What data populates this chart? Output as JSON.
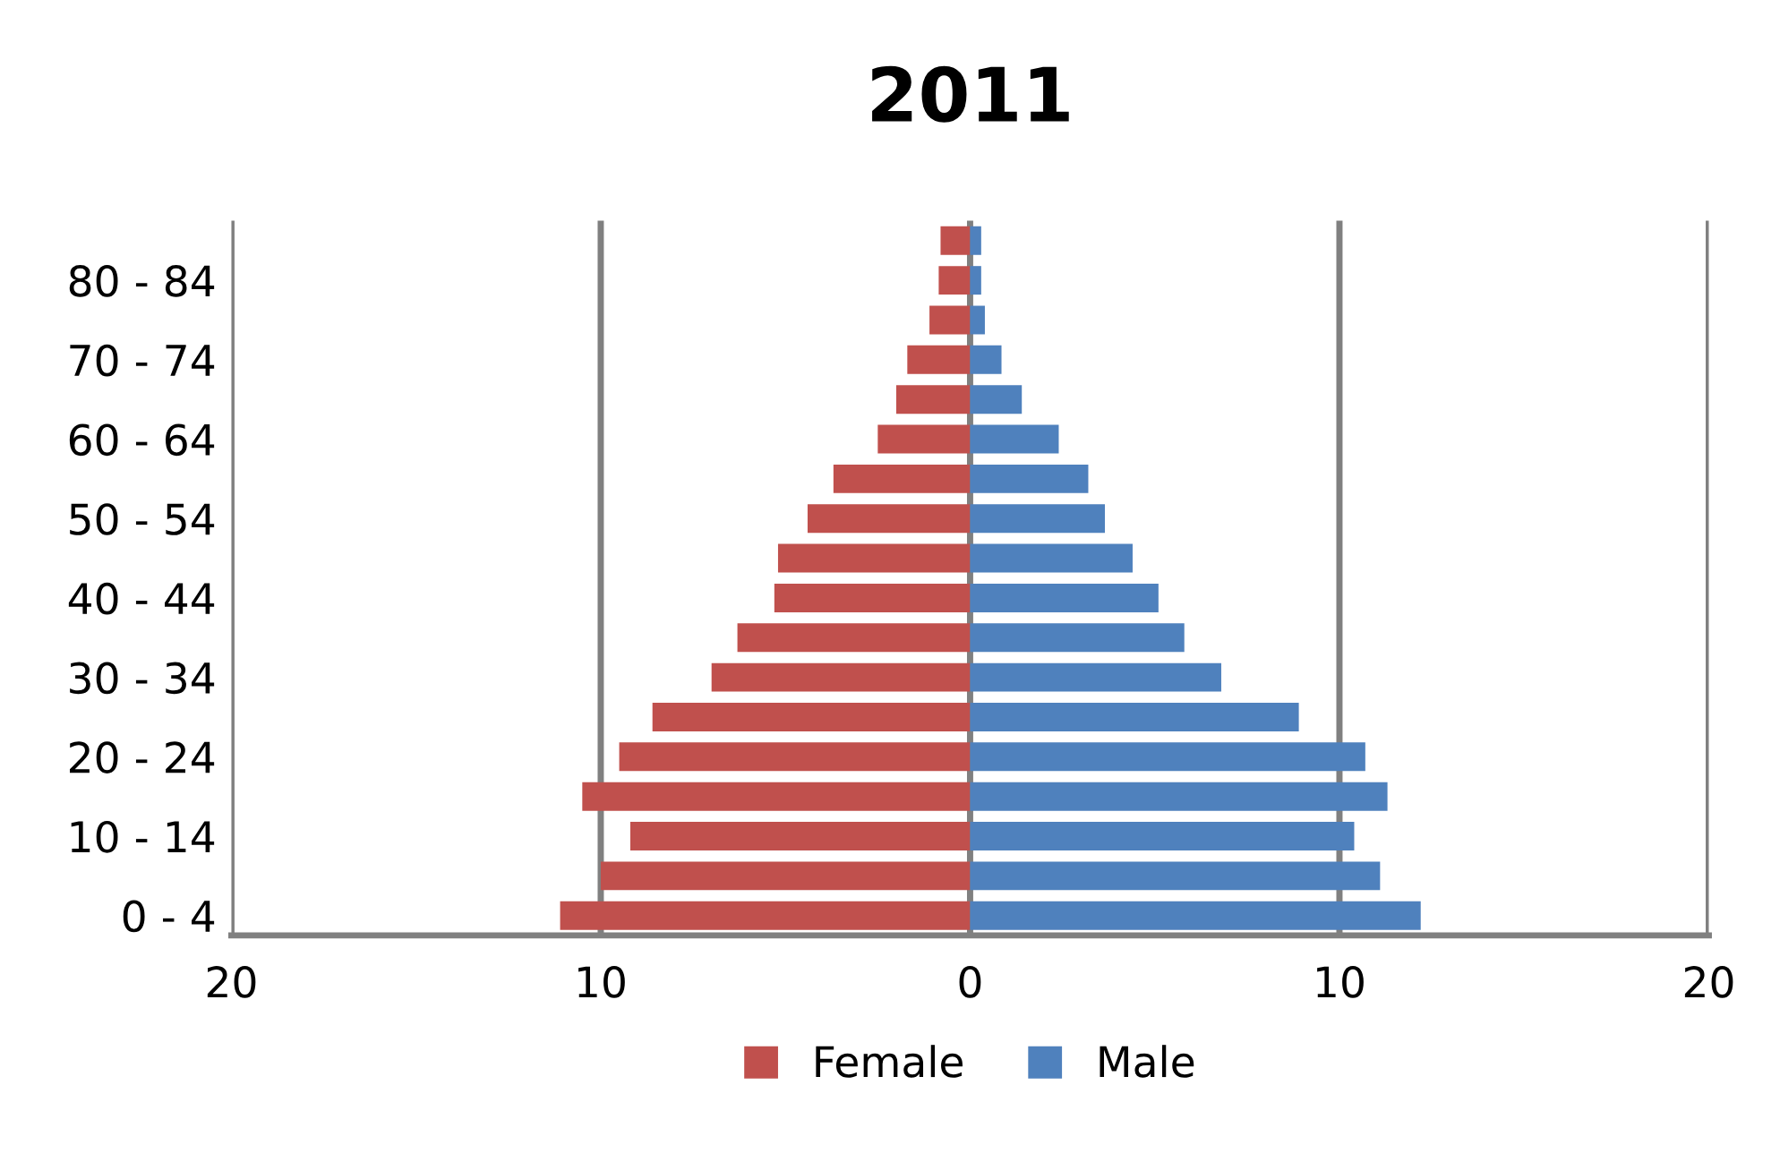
{
  "chart_data": {
    "type": "bar",
    "title": "2011",
    "orientation": "horizontal",
    "stacked": true,
    "categories": [
      null,
      "80 - 84",
      null,
      "70 - 74",
      null,
      "60 - 64",
      null,
      "50 - 54",
      null,
      "40 - 44",
      null,
      "30 - 34",
      null,
      "20 - 24",
      null,
      "10 - 14",
      null,
      "0 - 4"
    ],
    "series": [
      {
        "name": "Female",
        "color": "#c0504d",
        "values": [
          -0.8,
          -0.85,
          -1.1,
          -1.7,
          -2.0,
          -2.5,
          -3.7,
          -4.4,
          -5.2,
          -5.3,
          -6.3,
          -7.0,
          -8.6,
          -9.5,
          -10.5,
          -9.2,
          -10.0,
          -11.1
        ]
      },
      {
        "name": "Male",
        "color": "#4f81bd",
        "values": [
          0.3,
          0.3,
          0.4,
          0.85,
          1.4,
          2.4,
          3.2,
          3.65,
          4.4,
          5.1,
          5.8,
          6.8,
          8.9,
          10.7,
          11.3,
          10.4,
          11.1,
          12.2
        ]
      }
    ],
    "xlim": [
      -20,
      20
    ],
    "xticks": [
      {
        "value": -20,
        "label": "20"
      },
      {
        "value": -10,
        "label": "10"
      },
      0,
      10,
      20
    ],
    "grid": "x",
    "legend": "bottom"
  }
}
